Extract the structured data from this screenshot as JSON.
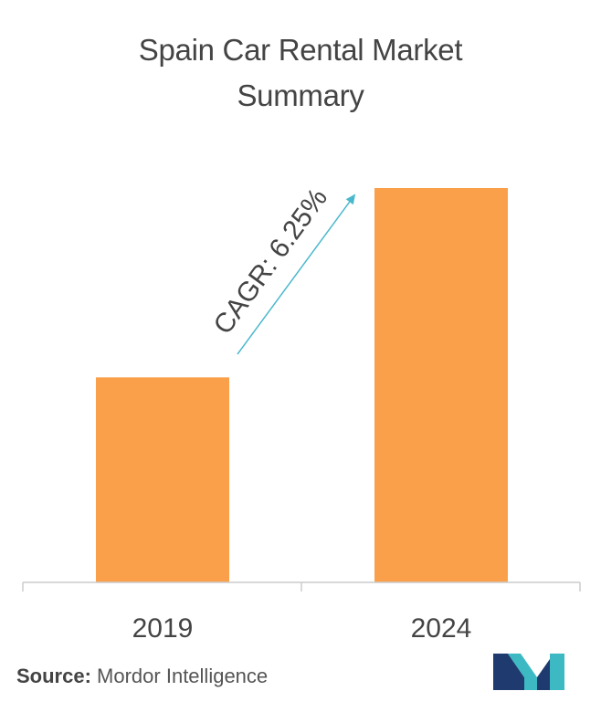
{
  "title_lines": [
    "Spain Car Rental Market",
    "Summary"
  ],
  "chart_data": {
    "type": "bar",
    "title": "Spain Car Rental Market Summary",
    "categories": [
      "2019",
      "2024"
    ],
    "values": [
      0.52,
      1.0
    ],
    "ylim": [
      0,
      1.0
    ],
    "grid": false,
    "annotation": {
      "text": "CAGR: 6.25%"
    },
    "bar_color": "#FBA04A",
    "arrow_color": "#4AB8CC"
  },
  "source": {
    "label": "Source:",
    "text": "Mordor Intelligence"
  },
  "logo": {
    "icon": "mordor-intelligence-logo-icon",
    "colors": [
      "#1F3A6E",
      "#3CB9C3"
    ]
  }
}
